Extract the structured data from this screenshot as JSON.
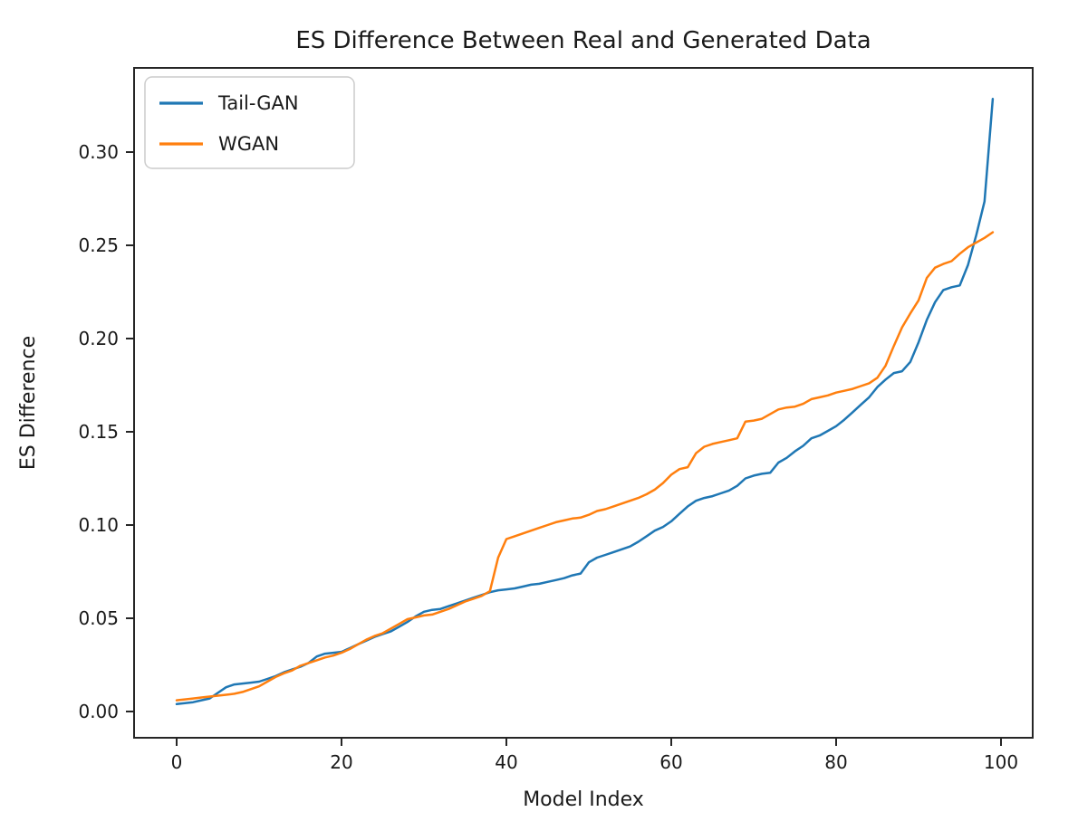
{
  "chart_data": {
    "type": "line",
    "title": "ES Difference Between Real and Generated Data",
    "xlabel": "Model Index",
    "ylabel": "ES Difference",
    "x_ticks": [
      0,
      20,
      40,
      60,
      80,
      100
    ],
    "y_ticks": [
      {
        "value": 0.0,
        "label": "0.00"
      },
      {
        "value": 0.05,
        "label": "0.05"
      },
      {
        "value": 0.1,
        "label": "0.10"
      },
      {
        "value": 0.15,
        "label": "0.15"
      },
      {
        "value": 0.2,
        "label": "0.20"
      },
      {
        "value": 0.25,
        "label": "0.25"
      },
      {
        "value": 0.3,
        "label": "0.30"
      }
    ],
    "xlim": [
      -5.2,
      103.9
    ],
    "ylim": [
      -0.014,
      0.345
    ],
    "grid": false,
    "legend_position": "upper-left",
    "x_description": "model index 0-99, one point per model, both series sorted ascending",
    "series": [
      {
        "name": "Tail-GAN",
        "color": "#1f77b4",
        "values": [
          0.004,
          0.0045,
          0.005,
          0.006,
          0.007,
          0.01,
          0.013,
          0.0145,
          0.015,
          0.0155,
          0.016,
          0.0175,
          0.019,
          0.021,
          0.0225,
          0.024,
          0.026,
          0.0295,
          0.031,
          0.0315,
          0.032,
          0.034,
          0.036,
          0.038,
          0.04,
          0.0415,
          0.043,
          0.0455,
          0.048,
          0.051,
          0.0535,
          0.0545,
          0.055,
          0.0565,
          0.058,
          0.0595,
          0.061,
          0.0625,
          0.064,
          0.065,
          0.0655,
          0.066,
          0.067,
          0.068,
          0.0685,
          0.0695,
          0.0705,
          0.0715,
          0.073,
          0.074,
          0.08,
          0.0825,
          0.084,
          0.0855,
          0.087,
          0.0885,
          0.091,
          0.094,
          0.097,
          0.099,
          0.102,
          0.106,
          0.11,
          0.113,
          0.1145,
          0.1155,
          0.117,
          0.1185,
          0.121,
          0.125,
          0.1265,
          0.1275,
          0.128,
          0.1335,
          0.136,
          0.1395,
          0.1425,
          0.1465,
          0.148,
          0.1505,
          0.153,
          0.1565,
          0.1605,
          0.1645,
          0.1685,
          0.174,
          0.178,
          0.1815,
          0.1825,
          0.1875,
          0.198,
          0.21,
          0.2195,
          0.226,
          0.2275,
          0.2285,
          0.2395,
          0.2555,
          0.2735,
          0.3285
        ]
      },
      {
        "name": "WGAN",
        "color": "#ff7f0e",
        "values": [
          0.006,
          0.0065,
          0.007,
          0.0075,
          0.008,
          0.0085,
          0.009,
          0.0095,
          0.0105,
          0.012,
          0.0135,
          0.016,
          0.0185,
          0.0205,
          0.022,
          0.0245,
          0.026,
          0.0275,
          0.029,
          0.03,
          0.0315,
          0.0335,
          0.036,
          0.0385,
          0.0405,
          0.042,
          0.0445,
          0.047,
          0.0495,
          0.0505,
          0.0515,
          0.052,
          0.0535,
          0.055,
          0.057,
          0.059,
          0.0605,
          0.062,
          0.0645,
          0.0825,
          0.0925,
          0.094,
          0.0955,
          0.097,
          0.0985,
          0.1,
          0.1015,
          0.1025,
          0.1035,
          0.104,
          0.1055,
          0.1075,
          0.1085,
          0.11,
          0.1115,
          0.113,
          0.1145,
          0.1165,
          0.119,
          0.1225,
          0.127,
          0.13,
          0.131,
          0.1385,
          0.142,
          0.1435,
          0.1445,
          0.1455,
          0.1465,
          0.1555,
          0.156,
          0.157,
          0.1595,
          0.162,
          0.163,
          0.1635,
          0.165,
          0.1675,
          0.1685,
          0.1695,
          0.171,
          0.172,
          0.173,
          0.1745,
          0.176,
          0.179,
          0.1855,
          0.196,
          0.206,
          0.2135,
          0.2205,
          0.2325,
          0.238,
          0.24,
          0.2415,
          0.2455,
          0.249,
          0.2515,
          0.254,
          0.257
        ]
      }
    ],
    "style": {
      "spine_color": "#262626",
      "background": "#ffffff",
      "legend_border": "#cccccc",
      "line_width": 2.5
    }
  }
}
